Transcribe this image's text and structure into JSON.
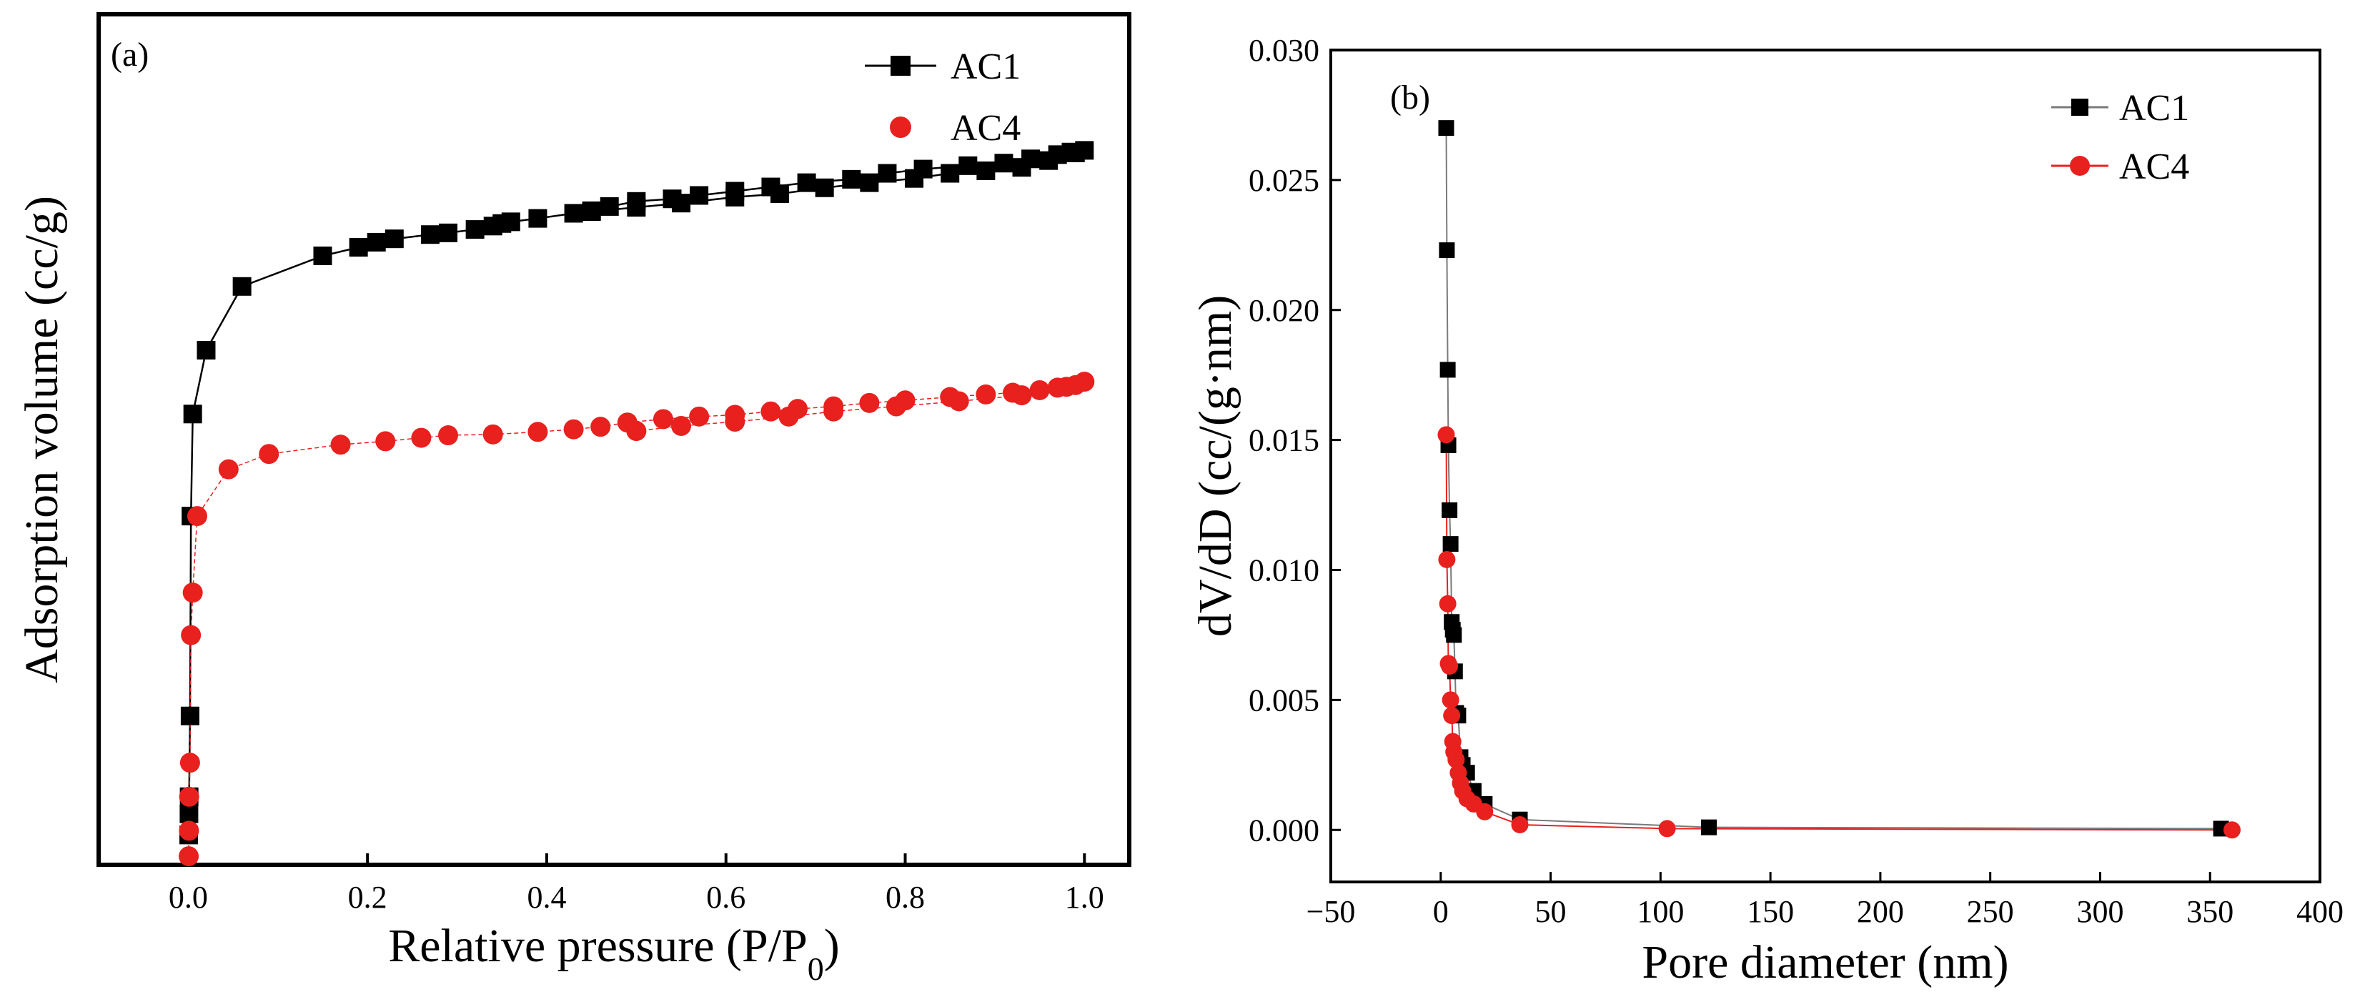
{
  "colors": {
    "ac1": "#000000",
    "ac4": "#e8201e",
    "frame": "#000000"
  },
  "chart_data": [
    {
      "type": "scatter",
      "panel_label": "(a)",
      "title": "",
      "xlabel": "Relative pressure (P/P",
      "xlabel_sub": "0",
      "xlabel_end": ")",
      "ylabel": "Adsorption volume (cc/g)",
      "xlim": [
        -0.1,
        1.05
      ],
      "ylim": [
        0,
        100
      ],
      "y_ticks_shown": false,
      "x_ticks": [
        0.0,
        0.2,
        0.4,
        0.6,
        0.8,
        1.0
      ],
      "x_tick_labels": [
        "0.0",
        "0.2",
        "0.4",
        "0.6",
        "0.8",
        "1.0"
      ],
      "legend_position": "top-right",
      "series": [
        {
          "name": "AC1",
          "marker": "square",
          "line": true,
          "color": "#000000",
          "x": [
            0.0005,
            0.0008,
            0.001,
            0.002,
            0.003,
            0.005,
            0.02,
            0.06,
            0.15,
            0.19,
            0.21,
            0.23,
            0.27,
            0.29,
            0.32,
            0.34,
            0.35,
            0.36,
            0.39,
            0.43,
            0.45,
            0.47,
            0.5,
            0.54,
            0.57,
            0.61,
            0.65,
            0.69,
            0.74,
            0.78,
            0.82,
            0.87,
            0.91,
            0.94,
            0.97,
            0.985,
            1.0,
            0.99,
            0.96,
            0.93,
            0.89,
            0.85,
            0.81,
            0.76,
            0.71,
            0.66,
            0.61,
            0.55,
            0.5,
            0.45
          ],
          "y": [
            3.5,
            6,
            8,
            17.5,
            41,
            53,
            60.5,
            68,
            71.6,
            72.6,
            73.2,
            73.6,
            74.1,
            74.3,
            74.7,
            75.1,
            75.4,
            75.6,
            76,
            76.6,
            76.9,
            77.4,
            78,
            78.3,
            78.7,
            79.2,
            79.7,
            80.2,
            80.6,
            81.3,
            81.8,
            82.2,
            82.5,
            83,
            83.5,
            83.8,
            84,
            83.7,
            82.8,
            82,
            81.6,
            81.3,
            80.7,
            80.2,
            79.6,
            78.9,
            78.5,
            77.8,
            77.3,
            76.8
          ]
        },
        {
          "name": "AC4",
          "marker": "circle",
          "line": true,
          "color": "#e8201e",
          "x": [
            0.0005,
            0.0008,
            0.001,
            0.002,
            0.003,
            0.005,
            0.01,
            0.045,
            0.09,
            0.17,
            0.22,
            0.26,
            0.29,
            0.34,
            0.39,
            0.43,
            0.46,
            0.49,
            0.53,
            0.57,
            0.61,
            0.65,
            0.68,
            0.72,
            0.76,
            0.8,
            0.85,
            0.89,
            0.92,
            0.95,
            0.97,
            0.99,
            1.0,
            0.98,
            0.93,
            0.86,
            0.79,
            0.72,
            0.67,
            0.61,
            0.55,
            0.5
          ],
          "y": [
            1,
            4,
            8,
            12,
            27,
            32,
            41,
            46.5,
            48.3,
            49.4,
            49.8,
            50.2,
            50.5,
            50.6,
            50.9,
            51.2,
            51.5,
            52,
            52.4,
            52.7,
            52.9,
            53.3,
            53.6,
            53.9,
            54.3,
            54.6,
            55,
            55.3,
            55.5,
            55.8,
            56.1,
            56.4,
            56.8,
            56.2,
            55.2,
            54.5,
            53.9,
            53.3,
            52.7,
            52.1,
            51.6,
            51
          ]
        }
      ]
    },
    {
      "type": "line",
      "panel_label": "(b)",
      "title": "",
      "xlabel": "Pore diameter (nm)",
      "ylabel": "dV/dD (cc/(g·nm)",
      "xlim": [
        -50,
        400
      ],
      "ylim": [
        -0.002,
        0.03
      ],
      "x_ticks": [
        -50,
        0,
        50,
        100,
        150,
        200,
        250,
        300,
        350,
        400
      ],
      "x_tick_labels": [
        "−50",
        "0",
        "50",
        "100",
        "150",
        "200",
        "250",
        "300",
        "350",
        "400"
      ],
      "y_ticks": [
        0,
        0.005,
        0.01,
        0.015,
        0.02,
        0.025,
        0.03
      ],
      "y_tick_labels": [
        "0.000",
        "0.005",
        "0.010",
        "0.015",
        "0.020",
        "0.025",
        "0.030"
      ],
      "legend_position": "top-right",
      "series": [
        {
          "name": "AC1",
          "marker": "square",
          "color": "#000000",
          "x": [
            2.5,
            2.8,
            3.2,
            3.5,
            4.0,
            4.5,
            5.0,
            5.5,
            6.0,
            6.5,
            7.0,
            8.0,
            9.0,
            10.0,
            12.0,
            15.0,
            20.0,
            36.0,
            122.0,
            355.0
          ],
          "y": [
            0.027,
            0.0223,
            0.0177,
            0.0148,
            0.0123,
            0.011,
            0.008,
            0.0077,
            0.0075,
            0.0061,
            0.0045,
            0.0044,
            0.0028,
            0.0025,
            0.0022,
            0.0015,
            0.001,
            0.0004,
            0.0001,
            5e-05
          ]
        },
        {
          "name": "AC4",
          "marker": "circle",
          "color": "#e8201e",
          "x": [
            2.5,
            2.8,
            3.2,
            3.5,
            4.0,
            4.5,
            5.0,
            5.5,
            6.0,
            7.0,
            8.0,
            9.0,
            10.0,
            12.0,
            15.0,
            20.0,
            36.0,
            103.0,
            360.0
          ],
          "y": [
            0.0152,
            0.0104,
            0.0087,
            0.0064,
            0.0063,
            0.005,
            0.0044,
            0.0034,
            0.003,
            0.0027,
            0.0022,
            0.0018,
            0.0015,
            0.0012,
            0.001,
            0.0007,
            0.0002,
            5e-05,
            0.0
          ]
        }
      ]
    }
  ]
}
